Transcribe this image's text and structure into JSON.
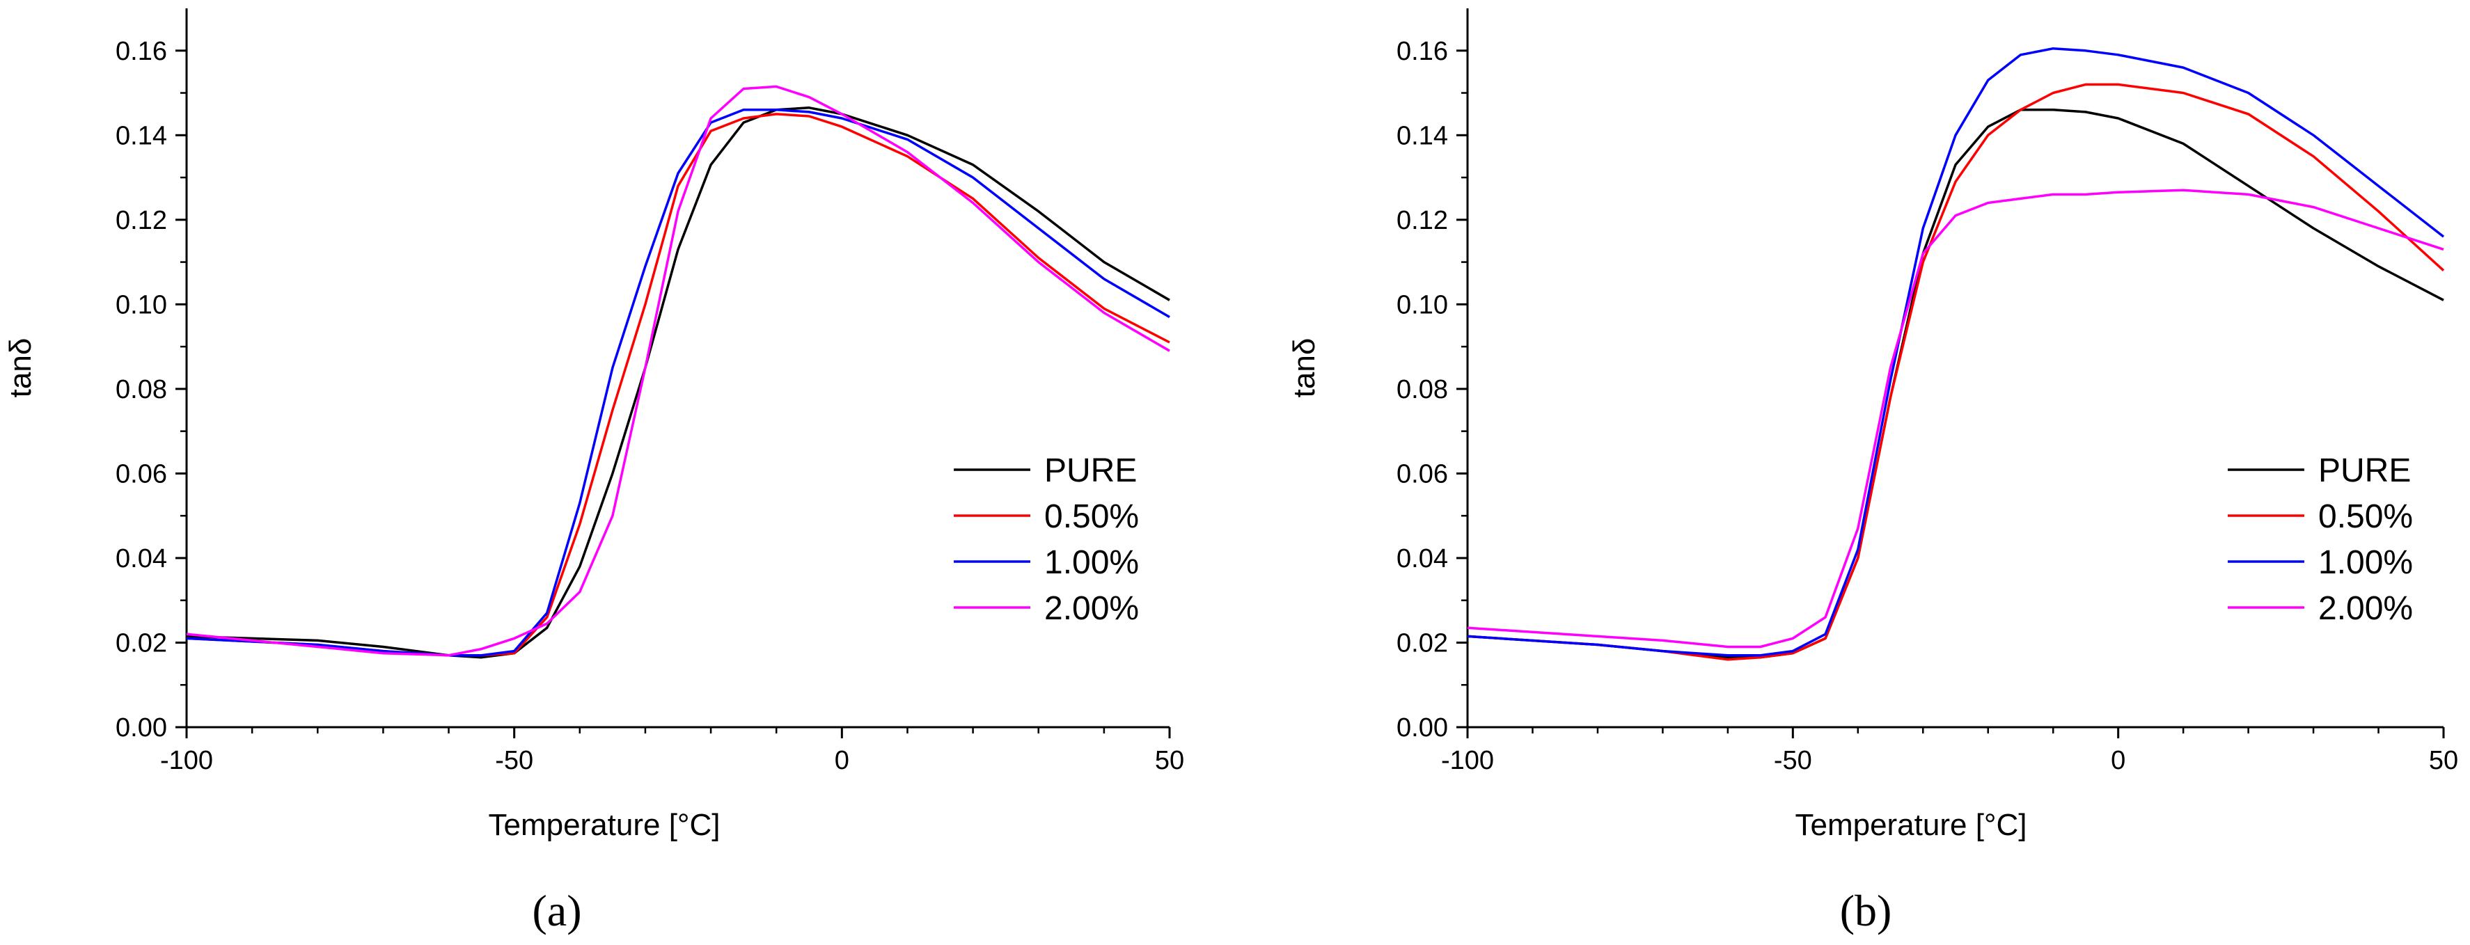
{
  "chart_data": [
    {
      "type": "line",
      "caption": "(a)",
      "xlabel": "Temperature [°C]",
      "ylabel": "tanδ",
      "xlim": [
        -100,
        50
      ],
      "ylim": [
        0,
        0.17
      ],
      "x_ticks": [
        -100,
        -50,
        0,
        50
      ],
      "x_tick_labels": [
        "-100",
        "-50",
        "0",
        "50"
      ],
      "y_ticks": [
        0,
        0.02,
        0.04,
        0.06,
        0.08,
        0.1,
        0.12,
        0.14,
        0.16
      ],
      "y_tick_labels": [
        "0.00",
        "0.02",
        "0.04",
        "0.06",
        "0.08",
        "0.10",
        "0.12",
        "0.14",
        "0.16"
      ],
      "legend_position": "bottom-right",
      "series": [
        {
          "name": "PURE",
          "color": "#000000",
          "x": [
            -100,
            -80,
            -70,
            -60,
            -55,
            -50,
            -45,
            -40,
            -35,
            -30,
            -25,
            -20,
            -15,
            -10,
            -5,
            0,
            10,
            20,
            30,
            40,
            50
          ],
          "y": [
            0.0215,
            0.0205,
            0.019,
            0.017,
            0.0165,
            0.0175,
            0.0235,
            0.038,
            0.06,
            0.085,
            0.113,
            0.133,
            0.143,
            0.146,
            0.1465,
            0.145,
            0.14,
            0.133,
            0.122,
            0.11,
            0.101
          ]
        },
        {
          "name": "0.50%",
          "color": "#ff0000",
          "x": [
            -100,
            -80,
            -70,
            -60,
            -55,
            -50,
            -45,
            -40,
            -35,
            -30,
            -25,
            -20,
            -15,
            -10,
            -5,
            0,
            10,
            20,
            30,
            40,
            50
          ],
          "y": [
            0.021,
            0.0195,
            0.018,
            0.017,
            0.017,
            0.0175,
            0.026,
            0.048,
            0.075,
            0.1,
            0.128,
            0.141,
            0.144,
            0.145,
            0.1445,
            0.142,
            0.135,
            0.125,
            0.111,
            0.099,
            0.091
          ]
        },
        {
          "name": "1.00%",
          "color": "#0000ff",
          "x": [
            -100,
            -80,
            -70,
            -60,
            -55,
            -50,
            -45,
            -40,
            -35,
            -30,
            -25,
            -20,
            -15,
            -10,
            -5,
            0,
            10,
            20,
            30,
            40,
            50
          ],
          "y": [
            0.021,
            0.0195,
            0.018,
            0.017,
            0.017,
            0.018,
            0.027,
            0.053,
            0.085,
            0.109,
            0.131,
            0.143,
            0.146,
            0.146,
            0.1455,
            0.144,
            0.139,
            0.13,
            0.118,
            0.106,
            0.097
          ]
        },
        {
          "name": "2.00%",
          "color": "#ff00ff",
          "x": [
            -100,
            -80,
            -70,
            -60,
            -55,
            -50,
            -45,
            -40,
            -35,
            -30,
            -25,
            -20,
            -15,
            -10,
            -5,
            0,
            10,
            20,
            30,
            40,
            50
          ],
          "y": [
            0.022,
            0.019,
            0.0175,
            0.017,
            0.0185,
            0.021,
            0.0245,
            0.032,
            0.05,
            0.085,
            0.122,
            0.144,
            0.151,
            0.1515,
            0.149,
            0.145,
            0.136,
            0.124,
            0.11,
            0.098,
            0.089
          ]
        }
      ]
    },
    {
      "type": "line",
      "caption": "(b)",
      "xlabel": "Temperature [°C]",
      "ylabel": "tanδ",
      "xlim": [
        -100,
        50
      ],
      "ylim": [
        0,
        0.17
      ],
      "x_ticks": [
        -100,
        -50,
        0,
        50
      ],
      "x_tick_labels": [
        "-100",
        "-50",
        "0",
        "50"
      ],
      "y_ticks": [
        0,
        0.02,
        0.04,
        0.06,
        0.08,
        0.1,
        0.12,
        0.14,
        0.16
      ],
      "y_tick_labels": [
        "0.00",
        "0.02",
        "0.04",
        "0.06",
        "0.08",
        "0.10",
        "0.12",
        "0.14",
        "0.16"
      ],
      "legend_position": "bottom-right",
      "series": [
        {
          "name": "PURE",
          "color": "#000000",
          "x": [
            -100,
            -80,
            -70,
            -60,
            -55,
            -50,
            -45,
            -40,
            -35,
            -30,
            -25,
            -20,
            -15,
            -10,
            -5,
            0,
            10,
            20,
            30,
            40,
            50
          ],
          "y": [
            0.0215,
            0.0195,
            0.018,
            0.0165,
            0.0165,
            0.0175,
            0.021,
            0.04,
            0.078,
            0.112,
            0.133,
            0.142,
            0.146,
            0.146,
            0.1455,
            0.144,
            0.138,
            0.128,
            0.118,
            0.109,
            0.101
          ]
        },
        {
          "name": "0.50%",
          "color": "#ff0000",
          "x": [
            -100,
            -80,
            -70,
            -60,
            -55,
            -50,
            -45,
            -40,
            -35,
            -30,
            -25,
            -20,
            -15,
            -10,
            -5,
            0,
            10,
            20,
            30,
            40,
            50
          ],
          "y": [
            0.0215,
            0.0195,
            0.018,
            0.016,
            0.0165,
            0.0175,
            0.021,
            0.04,
            0.078,
            0.11,
            0.129,
            0.14,
            0.146,
            0.15,
            0.152,
            0.152,
            0.15,
            0.145,
            0.135,
            0.122,
            0.108
          ]
        },
        {
          "name": "1.00%",
          "color": "#0000ff",
          "x": [
            -100,
            -80,
            -70,
            -60,
            -55,
            -50,
            -45,
            -40,
            -35,
            -30,
            -25,
            -20,
            -15,
            -10,
            -5,
            0,
            10,
            20,
            30,
            40,
            50
          ],
          "y": [
            0.0215,
            0.0195,
            0.018,
            0.017,
            0.017,
            0.018,
            0.022,
            0.042,
            0.082,
            0.118,
            0.14,
            0.153,
            0.159,
            0.1605,
            0.16,
            0.159,
            0.156,
            0.15,
            0.14,
            0.128,
            0.116
          ]
        },
        {
          "name": "2.00%",
          "color": "#ff00ff",
          "x": [
            -100,
            -80,
            -70,
            -60,
            -55,
            -50,
            -45,
            -40,
            -35,
            -30,
            -25,
            -20,
            -15,
            -10,
            -5,
            0,
            10,
            20,
            30,
            40,
            50
          ],
          "y": [
            0.0235,
            0.0215,
            0.0205,
            0.019,
            0.019,
            0.021,
            0.026,
            0.047,
            0.085,
            0.112,
            0.121,
            0.124,
            0.125,
            0.126,
            0.126,
            0.1265,
            0.127,
            0.126,
            0.123,
            0.118,
            0.113
          ]
        }
      ]
    }
  ]
}
